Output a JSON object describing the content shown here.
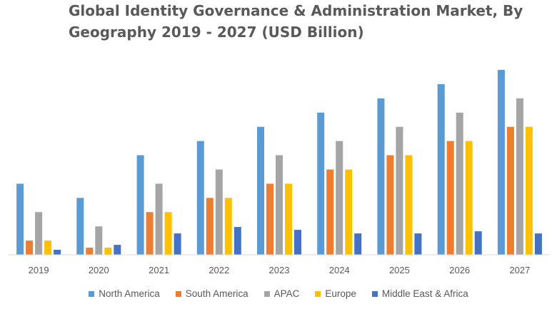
{
  "chart_data": {
    "type": "bar",
    "title": "Global Identity Governance & Administration Market, By Geography 2019 - 2027 (USD Billion)",
    "xlabel": "",
    "ylabel": "",
    "ylim": [
      0,
      13
    ],
    "grid": false,
    "legend_position": "bottom",
    "categories": [
      "2019",
      "2020",
      "2021",
      "2022",
      "2023",
      "2024",
      "2025",
      "2026",
      "2027"
    ],
    "series": [
      {
        "name": "North America",
        "color": "#5b9bd5",
        "values": [
          5.0,
          4.0,
          7.0,
          8.0,
          9.0,
          10.0,
          11.0,
          12.0,
          13.0
        ]
      },
      {
        "name": "South America",
        "color": "#ed7d31",
        "values": [
          1.0,
          0.5,
          3.0,
          4.0,
          5.0,
          6.0,
          7.0,
          8.0,
          9.0
        ]
      },
      {
        "name": "APAC",
        "color": "#a5a5a5",
        "values": [
          3.0,
          2.0,
          5.0,
          6.0,
          7.0,
          8.0,
          9.0,
          10.0,
          11.0
        ]
      },
      {
        "name": "Europe",
        "color": "#ffc000",
        "values": [
          1.0,
          0.5,
          3.0,
          4.0,
          5.0,
          6.0,
          7.0,
          8.0,
          9.0
        ]
      },
      {
        "name": "Middle East & Africa",
        "color": "#4472c4",
        "values": [
          0.35,
          0.7,
          1.5,
          1.95,
          1.75,
          1.5,
          1.5,
          1.65,
          1.5
        ]
      }
    ]
  }
}
